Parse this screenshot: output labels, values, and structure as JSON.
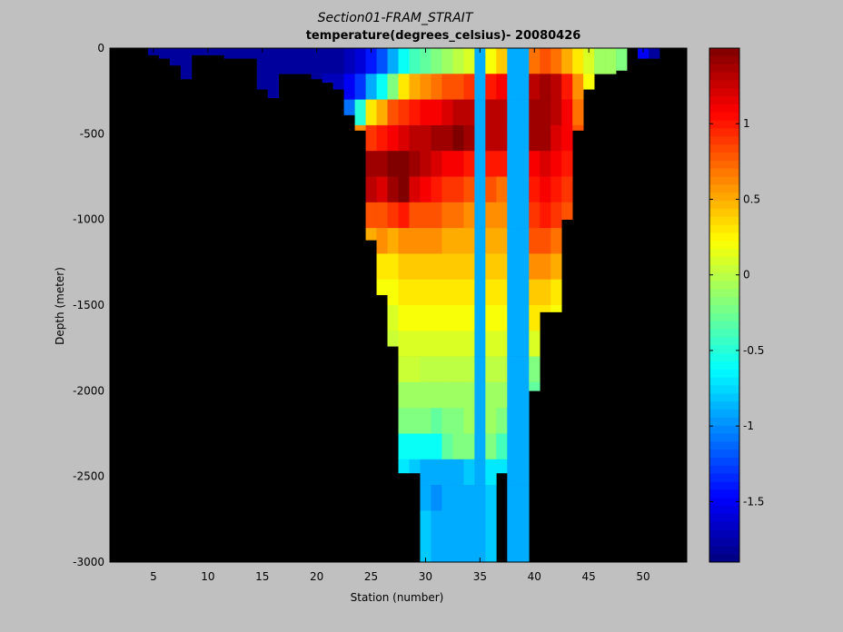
{
  "chart_data": {
    "type": "heatmap",
    "title": "Section01-FRAM_STRAIT",
    "subtitle": "temperature(degrees_celsius)- 20080426",
    "xlabel": "Station (number)",
    "ylabel": "Depth (meter)",
    "xlim": [
      1,
      54
    ],
    "ylim": [
      -3000,
      0
    ],
    "xticks": [
      "5",
      "10",
      "15",
      "20",
      "25",
      "30",
      "35",
      "40",
      "45",
      "50"
    ],
    "yticks": [
      "0",
      "-500",
      "-1000",
      "-1500",
      "-2000",
      "-2500",
      "-3000"
    ],
    "colorbar": {
      "range": [
        -1.9,
        1.5
      ],
      "ticks": [
        "1",
        "0.5",
        "0",
        "-0.5",
        "-1",
        "-1.5"
      ],
      "colormap": "jet"
    },
    "background_color": "#000000",
    "colors": {
      "figure_bg": "#c0c0c0",
      "missing": "#000000"
    },
    "stations": [
      {
        "x": 5,
        "depth": 40,
        "values": [
          -1.8
        ]
      },
      {
        "x": 6,
        "depth": 60,
        "values": [
          -1.8,
          -1.8
        ]
      },
      {
        "x": 7,
        "depth": 100,
        "values": [
          -1.8,
          -1.8,
          -1.8
        ]
      },
      {
        "x": 8,
        "depth": 180,
        "values": [
          -1.8,
          -1.8,
          -1.7,
          -0.6
        ]
      },
      {
        "x": 9,
        "depth": 40,
        "values": [
          -1.8
        ]
      },
      {
        "x": 10,
        "depth": 40,
        "values": [
          -1.8
        ]
      },
      {
        "x": 11,
        "depth": 40,
        "values": [
          -1.8
        ]
      },
      {
        "x": 12,
        "depth": 60,
        "values": [
          -1.8,
          -1.8
        ]
      },
      {
        "x": 13,
        "depth": 60,
        "values": [
          -1.8,
          -1.8
        ]
      },
      {
        "x": 14,
        "depth": 60,
        "values": [
          -1.8,
          -1.8
        ]
      },
      {
        "x": 15,
        "depth": 240,
        "values": [
          -1.8,
          -1.8,
          -1.8,
          -1.5,
          -1.2
        ]
      },
      {
        "x": 16,
        "depth": 290,
        "values": [
          -1.8,
          -1.8,
          -1.7,
          -1.6,
          -1.4,
          -0.6
        ]
      },
      {
        "x": 17,
        "depth": 150,
        "values": [
          -1.8,
          -1.8,
          -1.8,
          -1.8
        ]
      },
      {
        "x": 18,
        "depth": 150,
        "values": [
          -1.8,
          -1.8,
          -1.8,
          -1.8
        ]
      },
      {
        "x": 19,
        "depth": 150,
        "values": [
          -1.8,
          -1.8,
          -1.8,
          -1.8
        ]
      },
      {
        "x": 20,
        "depth": 180,
        "values": [
          -1.8,
          -1.8,
          -1.8,
          -1.7,
          -1.6
        ]
      },
      {
        "x": 21,
        "depth": 200,
        "values": [
          -1.8,
          -1.7,
          -1.6,
          -1.5,
          -1.4
        ]
      },
      {
        "x": 22,
        "depth": 240,
        "values": [
          -1.8,
          -1.7,
          -1.5,
          -1.4,
          -0.2,
          -0.1
        ]
      },
      {
        "x": 23,
        "depth": 390,
        "values": [
          -1.7,
          -1.5,
          -1.1,
          0.3,
          1.1,
          1.2,
          0.6,
          0.5
        ]
      },
      {
        "x": 24,
        "depth": 480,
        "values": [
          -1.6,
          -1.3,
          -0.5,
          0.6,
          1.3,
          1.4,
          0.7,
          0.5,
          0.3,
          0.2
        ]
      },
      {
        "x": 25,
        "depth": 1120,
        "values": [
          -1.4,
          -0.9,
          0.3,
          0.9,
          1.4,
          1.3,
          0.8,
          0.5,
          0.3,
          0.2,
          0.2
        ]
      },
      {
        "x": 26,
        "depth": 1440,
        "values": [
          -1.2,
          -0.6,
          0.5,
          1.0,
          1.4,
          1.2,
          0.8,
          0.6,
          0.3,
          0.2,
          0.1,
          0.1,
          0.05
        ]
      },
      {
        "x": 27,
        "depth": 1740,
        "values": [
          -0.9,
          -0.2,
          0.8,
          1.1,
          1.5,
          1.4,
          0.9,
          0.5,
          0.3,
          0.2,
          0.1,
          0.05,
          0.0,
          -0.1,
          -0.2
        ]
      },
      {
        "x": 28,
        "depth": 2480,
        "values": [
          -0.6,
          0.3,
          0.9,
          1.2,
          1.5,
          1.5,
          1.0,
          0.6,
          0.4,
          0.3,
          0.2,
          0.1,
          0.05,
          -0.1,
          -0.2,
          -0.6,
          -0.7,
          -0.8
        ]
      },
      {
        "x": 29,
        "depth": 2480,
        "values": [
          -0.4,
          0.5,
          1.0,
          1.3,
          1.4,
          1.2,
          0.8,
          0.6,
          0.4,
          0.3,
          0.2,
          0.1,
          0.05,
          -0.1,
          -0.2,
          -0.6,
          -0.8,
          -0.9
        ]
      },
      {
        "x": 30,
        "depth": 3000,
        "values": [
          -0.3,
          0.6,
          1.1,
          1.3,
          1.3,
          1.1,
          0.8,
          0.6,
          0.4,
          0.3,
          0.2,
          0.1,
          0.0,
          -0.1,
          -0.2,
          -0.6,
          -0.9,
          -0.9,
          -0.8,
          -0.8
        ]
      },
      {
        "x": 31,
        "depth": 3000,
        "values": [
          -0.2,
          0.7,
          1.1,
          1.4,
          1.2,
          1.0,
          0.8,
          0.6,
          0.4,
          0.3,
          0.2,
          0.1,
          0.0,
          -0.1,
          -0.3,
          -0.6,
          -0.9,
          -1.0,
          -0.9,
          -0.9
        ]
      },
      {
        "x": 32,
        "depth": 3000,
        "values": [
          -0.1,
          0.8,
          1.2,
          1.4,
          1.1,
          0.9,
          0.7,
          0.5,
          0.4,
          0.3,
          0.2,
          0.1,
          0.0,
          -0.1,
          -0.2,
          -0.3,
          -0.9,
          -0.9,
          -0.9,
          -0.9
        ]
      },
      {
        "x": 33,
        "depth": 3000,
        "values": [
          0.0,
          0.8,
          1.3,
          1.5,
          1.1,
          0.9,
          0.7,
          0.5,
          0.4,
          0.3,
          0.2,
          0.1,
          0.0,
          -0.1,
          -0.2,
          -0.2,
          -0.9,
          -0.9,
          -0.9,
          -0.9
        ]
      },
      {
        "x": 34,
        "depth": 3000,
        "values": [
          0.1,
          0.9,
          1.3,
          1.4,
          1.0,
          0.8,
          0.6,
          0.5,
          0.4,
          0.3,
          0.2,
          0.1,
          0.0,
          -0.1,
          -0.1,
          -0.2,
          -0.8,
          -0.9,
          -0.9,
          -0.9
        ]
      },
      {
        "x": 35,
        "depth": 3000,
        "values": [
          -0.9,
          -0.9,
          -0.9,
          -0.9,
          -0.9,
          -0.9,
          -0.9,
          -0.9,
          -0.9,
          -0.9,
          -0.9,
          -0.9,
          -0.9,
          -0.9,
          -0.9,
          -0.9,
          -0.9,
          -0.9,
          -0.9,
          -0.9
        ]
      },
      {
        "x": 36,
        "depth": 3000,
        "values": [
          0.2,
          1.0,
          1.3,
          1.3,
          1.0,
          0.8,
          0.6,
          0.5,
          0.4,
          0.3,
          0.2,
          0.1,
          0.0,
          -0.1,
          -0.1,
          -0.2,
          -0.7,
          -0.8,
          -0.8,
          -0.8
        ]
      },
      {
        "x": 37,
        "depth": 2480,
        "values": [
          0.4,
          1.1,
          1.3,
          1.3,
          1.0,
          0.7,
          0.6,
          0.5,
          0.4,
          0.3,
          0.2,
          0.1,
          0.0,
          -0.1,
          -0.2,
          -0.4,
          -0.7,
          -0.8
        ]
      },
      {
        "x": 38,
        "depth": 3000,
        "values": [
          -0.9,
          -0.9,
          -0.9,
          -0.9,
          -0.9,
          -0.9,
          -0.9,
          -0.9,
          -0.9,
          -0.9,
          -0.9,
          -0.9,
          -0.9,
          -0.9,
          -0.9,
          -0.9,
          -0.9,
          -0.9,
          -0.9,
          -0.9
        ]
      },
      {
        "x": 39,
        "depth": 3000,
        "values": [
          -0.9,
          -0.9,
          -0.9,
          -0.9,
          -0.9,
          -0.9,
          -0.9,
          -0.9,
          -0.9,
          -0.9,
          -0.9,
          -0.9,
          -0.9,
          -0.9,
          -0.9,
          -0.9,
          -0.9,
          -0.9,
          -0.9,
          -0.9
        ]
      },
      {
        "x": 40,
        "depth": 2000,
        "values": [
          0.7,
          1.3,
          1.4,
          1.4,
          1.1,
          1.0,
          0.9,
          0.8,
          0.6,
          0.4,
          0.3,
          0.1,
          -0.2,
          -0.3,
          -0.7,
          -0.8
        ]
      },
      {
        "x": 41,
        "depth": 1540,
        "values": [
          0.8,
          1.4,
          1.4,
          1.4,
          1.2,
          1.1,
          1.0,
          0.8,
          0.6,
          0.4,
          0.3,
          0.2,
          -0.1,
          -0.6
        ]
      },
      {
        "x": 42,
        "depth": 1540,
        "values": [
          0.7,
          1.3,
          1.3,
          1.2,
          1.1,
          1.0,
          0.9,
          0.7,
          0.5,
          0.3,
          0.2,
          -0.5,
          -0.8,
          -0.6
        ]
      },
      {
        "x": 43,
        "depth": 1000,
        "values": [
          0.5,
          1.0,
          1.1,
          1.1,
          1.0,
          0.9,
          0.8,
          0.6,
          0.5,
          0.4
        ]
      },
      {
        "x": 44,
        "depth": 480,
        "values": [
          0.3,
          0.6,
          0.7,
          0.8,
          0.6
        ]
      },
      {
        "x": 45,
        "depth": 240,
        "values": [
          0.1,
          0.2,
          0.3
        ]
      },
      {
        "x": 46,
        "depth": 150,
        "values": [
          -0.1,
          0.0
        ]
      },
      {
        "x": 47,
        "depth": 150,
        "values": [
          -0.1,
          -0.3
        ]
      },
      {
        "x": 48,
        "depth": 130,
        "values": [
          -0.2,
          -0.5
        ]
      },
      {
        "x": 50,
        "depth": 60,
        "values": [
          -1.5
        ]
      },
      {
        "x": 51,
        "depth": 60,
        "values": [
          -1.8
        ]
      }
    ]
  }
}
